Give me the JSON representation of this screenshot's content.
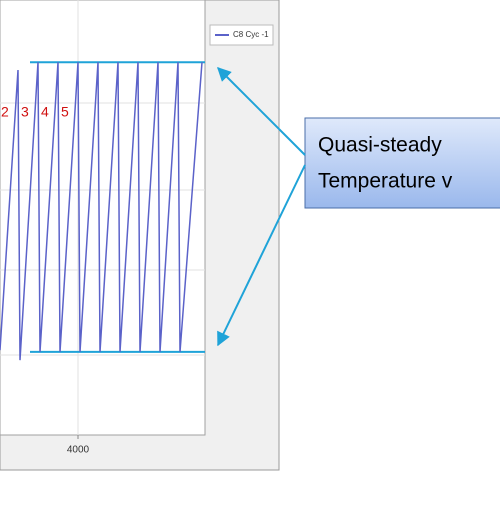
{
  "chart_data": {
    "type": "line",
    "x": [
      2440,
      2800,
      2840,
      3200,
      3240,
      3600,
      3640,
      4000,
      4040,
      4400,
      4440,
      4800,
      4840,
      5200,
      5240,
      5600,
      5640,
      6000,
      6040,
      6480
    ],
    "series": [
      {
        "name": "C8 Cyc -1",
        "color": "#5b62c9",
        "values": [
          19.5,
          83.9,
          17.2,
          85.7,
          19.1,
          85.7,
          19.1,
          85.7,
          19.1,
          85.7,
          19.1,
          85.7,
          19.1,
          85.7,
          19.1,
          85.7,
          19.1,
          85.7,
          19.1,
          85.7
        ]
      }
    ],
    "xlim": [
      2440,
      6540
    ],
    "xticks": [
      4000
    ],
    "ylim": [
      0,
      100
    ],
    "hlines": {
      "values": [
        85.7,
        19.1
      ],
      "color": "#1fa3d8"
    },
    "cycle_labels": [
      "2",
      "3",
      "4",
      "5"
    ],
    "callout": [
      "Quasi-steady",
      "Temperature v"
    ]
  }
}
